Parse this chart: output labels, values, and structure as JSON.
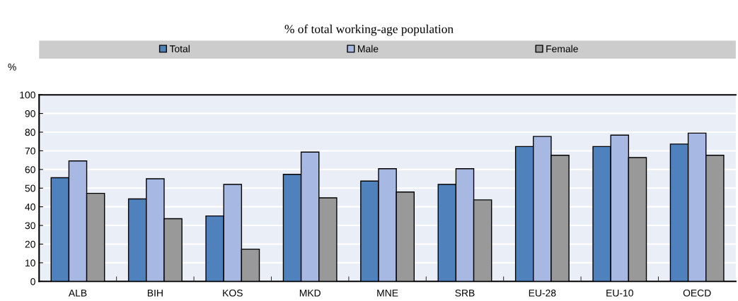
{
  "chart_data": {
    "type": "bar",
    "title": "% of total working-age population",
    "ylabel": "%",
    "categories": [
      "ALB",
      "BIH",
      "KOS",
      "MKD",
      "MNE",
      "SRB",
      "EU-28",
      "EU-10",
      "OECD"
    ],
    "series": [
      {
        "name": "Total",
        "color": "#4f81bd",
        "values": [
          55.6,
          44.2,
          35.1,
          57.4,
          53.8,
          52.0,
          72.3,
          72.3,
          73.6
        ]
      },
      {
        "name": "Male",
        "color": "#a7b9e3",
        "values": [
          64.6,
          55.0,
          52.0,
          69.3,
          60.4,
          60.4,
          77.7,
          78.4,
          79.5
        ]
      },
      {
        "name": "Female",
        "color": "#999999",
        "values": [
          47.2,
          33.6,
          17.3,
          44.8,
          47.9,
          43.7,
          67.6,
          66.4,
          67.6
        ]
      }
    ],
    "ylim": [
      0,
      100
    ],
    "yticks": [
      0,
      10,
      20,
      30,
      40,
      50,
      60,
      70,
      80,
      90,
      100
    ],
    "grid": "y",
    "legend": "top"
  }
}
